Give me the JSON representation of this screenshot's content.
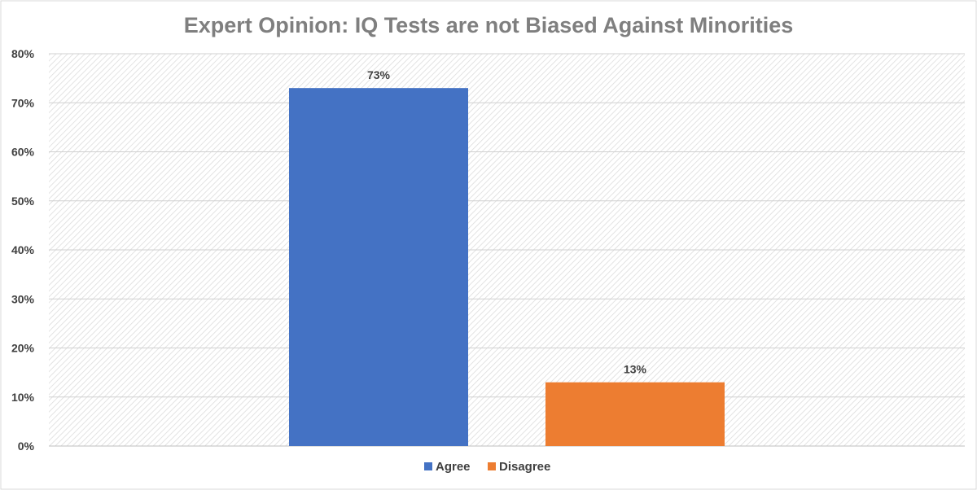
{
  "chart_data": {
    "type": "bar",
    "title": "Expert Opinion: IQ Tests are not Biased Against Minorities",
    "xlabel": "",
    "ylabel": "",
    "ylim": [
      0,
      80
    ],
    "yticks": [
      0,
      10,
      20,
      30,
      40,
      50,
      60,
      70,
      80
    ],
    "ytick_labels": [
      "0%",
      "10%",
      "20%",
      "30%",
      "40%",
      "50%",
      "60%",
      "70%",
      "80%"
    ],
    "grid": true,
    "legend_position": "bottom",
    "series": [
      {
        "name": "Agree",
        "value": 73,
        "label": "73%",
        "color": "#4472c4"
      },
      {
        "name": "Disagree",
        "value": 13,
        "label": "13%",
        "color": "#ed7d31"
      }
    ]
  }
}
